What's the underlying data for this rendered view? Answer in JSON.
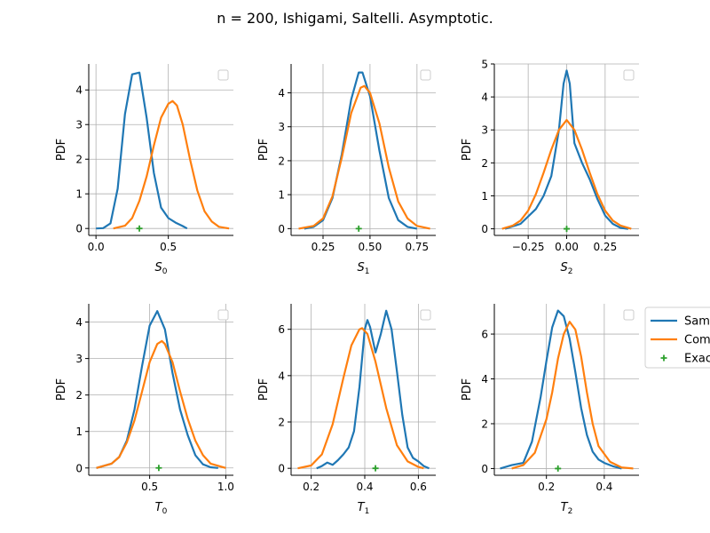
{
  "figure": {
    "title": "n = 200, Ishigami, Saltelli. Asymptotic."
  },
  "legend": {
    "placement": "right of last panel (clipped)",
    "items": [
      {
        "label": "Sam",
        "kind": "line",
        "color": "#1f77b4"
      },
      {
        "label": "Com",
        "kind": "line",
        "color": "#ff7f0e"
      },
      {
        "label": "Exac",
        "kind": "marker",
        "color": "#2ca02c"
      }
    ]
  },
  "colors": {
    "sample": "#1f77b4",
    "computed": "#ff7f0e",
    "exact": "#2ca02c",
    "grid": "#b0b0b0"
  },
  "chart_data": [
    {
      "type": "line",
      "xlabel": "S",
      "xlabel_sub": "0",
      "ylabel": "PDF",
      "grid": true,
      "xlim": [
        -0.05,
        0.95
      ],
      "ylim": [
        -0.2,
        4.75
      ],
      "xticks": [
        0.0,
        0.5
      ],
      "xtick_labels": [
        "0.0",
        "0.5"
      ],
      "yticks": [
        0,
        1,
        2,
        3,
        4
      ],
      "ytick_labels": [
        "0",
        "1",
        "2",
        "3",
        "4"
      ],
      "series": [
        {
          "color": "#1f77b4",
          "x": [
            0.0,
            0.05,
            0.1,
            0.15,
            0.2,
            0.25,
            0.3,
            0.35,
            0.4,
            0.45,
            0.5,
            0.55,
            0.6,
            0.63
          ],
          "y": [
            0.0,
            0.01,
            0.15,
            1.15,
            3.3,
            4.45,
            4.5,
            3.2,
            1.6,
            0.6,
            0.3,
            0.17,
            0.07,
            0.0
          ]
        },
        {
          "color": "#ff7f0e",
          "x": [
            0.12,
            0.2,
            0.25,
            0.3,
            0.35,
            0.4,
            0.45,
            0.5,
            0.53,
            0.56,
            0.6,
            0.65,
            0.7,
            0.75,
            0.8,
            0.85,
            0.92
          ],
          "y": [
            0.0,
            0.08,
            0.3,
            0.8,
            1.5,
            2.4,
            3.2,
            3.6,
            3.68,
            3.55,
            3.0,
            2.0,
            1.1,
            0.5,
            0.2,
            0.05,
            0.0
          ]
        }
      ],
      "exact": {
        "x": 0.3,
        "y": 0
      }
    },
    {
      "type": "line",
      "xlabel": "S",
      "xlabel_sub": "1",
      "ylabel": "PDF",
      "grid": true,
      "xlim": [
        0.08,
        0.85
      ],
      "ylim": [
        -0.2,
        4.85
      ],
      "xticks": [
        0.25,
        0.5,
        0.75
      ],
      "xtick_labels": [
        "0.25",
        "0.50",
        "0.75"
      ],
      "yticks": [
        0,
        1,
        2,
        3,
        4
      ],
      "ytick_labels": [
        "0",
        "1",
        "2",
        "3",
        "4"
      ],
      "series": [
        {
          "color": "#1f77b4",
          "x": [
            0.15,
            0.2,
            0.25,
            0.3,
            0.35,
            0.4,
            0.44,
            0.46,
            0.5,
            0.55,
            0.6,
            0.65,
            0.7,
            0.75
          ],
          "y": [
            0.0,
            0.05,
            0.25,
            0.9,
            2.2,
            3.8,
            4.6,
            4.6,
            3.9,
            2.3,
            0.9,
            0.25,
            0.05,
            0.0
          ]
        },
        {
          "color": "#ff7f0e",
          "x": [
            0.12,
            0.2,
            0.25,
            0.3,
            0.35,
            0.4,
            0.45,
            0.47,
            0.5,
            0.55,
            0.6,
            0.65,
            0.7,
            0.75,
            0.82
          ],
          "y": [
            0.0,
            0.08,
            0.3,
            0.95,
            2.1,
            3.4,
            4.15,
            4.2,
            4.0,
            3.1,
            1.8,
            0.8,
            0.3,
            0.08,
            0.0
          ]
        }
      ],
      "exact": {
        "x": 0.44,
        "y": 0
      }
    },
    {
      "type": "line",
      "xlabel": "S",
      "xlabel_sub": "2",
      "ylabel": "PDF",
      "grid": true,
      "xlim": [
        -0.47,
        0.47
      ],
      "ylim": [
        -0.2,
        5.0
      ],
      "xticks": [
        -0.25,
        0.0,
        0.25
      ],
      "xtick_labels": [
        "−0.25",
        "0.00",
        "0.25"
      ],
      "yticks": [
        0,
        1,
        2,
        3,
        4,
        5
      ],
      "ytick_labels": [
        "0",
        "1",
        "2",
        "3",
        "4",
        "5"
      ],
      "series": [
        {
          "color": "#1f77b4",
          "x": [
            -0.4,
            -0.3,
            -0.2,
            -0.15,
            -0.1,
            -0.05,
            -0.02,
            0.0,
            0.02,
            0.05,
            0.1,
            0.15,
            0.2,
            0.25,
            0.3,
            0.35,
            0.4
          ],
          "y": [
            0.0,
            0.15,
            0.6,
            1.0,
            1.6,
            3.0,
            4.4,
            4.8,
            4.4,
            2.6,
            2.0,
            1.5,
            0.9,
            0.4,
            0.15,
            0.03,
            0.0
          ]
        },
        {
          "color": "#ff7f0e",
          "x": [
            -0.42,
            -0.35,
            -0.3,
            -0.25,
            -0.2,
            -0.15,
            -0.1,
            -0.05,
            0.0,
            0.05,
            0.1,
            0.15,
            0.2,
            0.25,
            0.3,
            0.35,
            0.42
          ],
          "y": [
            0.0,
            0.1,
            0.25,
            0.55,
            1.05,
            1.7,
            2.4,
            3.0,
            3.3,
            3.0,
            2.4,
            1.7,
            1.05,
            0.55,
            0.25,
            0.1,
            0.0
          ]
        }
      ],
      "exact": {
        "x": 0.0,
        "y": 0
      }
    },
    {
      "type": "line",
      "xlabel": "T",
      "xlabel_sub": "0",
      "ylabel": "PDF",
      "grid": true,
      "xlim": [
        0.1,
        1.05
      ],
      "ylim": [
        -0.2,
        4.5
      ],
      "xticks": [
        0.5,
        1.0
      ],
      "xtick_labels": [
        "0.5",
        "1.0"
      ],
      "yticks": [
        0,
        1,
        2,
        3,
        4
      ],
      "ytick_labels": [
        "0",
        "1",
        "2",
        "3",
        "4"
      ],
      "series": [
        {
          "color": "#1f77b4",
          "x": [
            0.15,
            0.25,
            0.3,
            0.35,
            0.4,
            0.45,
            0.5,
            0.55,
            0.6,
            0.65,
            0.7,
            0.75,
            0.8,
            0.85,
            0.9,
            0.95
          ],
          "y": [
            0.0,
            0.12,
            0.3,
            0.75,
            1.6,
            2.8,
            3.9,
            4.3,
            3.8,
            2.6,
            1.6,
            0.9,
            0.35,
            0.1,
            0.02,
            0.0
          ]
        },
        {
          "color": "#ff7f0e",
          "x": [
            0.15,
            0.25,
            0.3,
            0.35,
            0.4,
            0.45,
            0.5,
            0.55,
            0.58,
            0.6,
            0.65,
            0.7,
            0.75,
            0.8,
            0.85,
            0.9,
            1.0
          ],
          "y": [
            0.0,
            0.12,
            0.3,
            0.7,
            1.3,
            2.1,
            2.9,
            3.4,
            3.48,
            3.4,
            2.9,
            2.1,
            1.35,
            0.75,
            0.35,
            0.12,
            0.0
          ]
        }
      ],
      "exact": {
        "x": 0.56,
        "y": 0
      }
    },
    {
      "type": "line",
      "xlabel": "T",
      "xlabel_sub": "1",
      "ylabel": "PDF",
      "grid": true,
      "xlim": [
        0.125,
        0.665
      ],
      "ylim": [
        -0.3,
        7.1
      ],
      "xticks": [
        0.2,
        0.4,
        0.6
      ],
      "xtick_labels": [
        "0.2",
        "0.4",
        "0.6"
      ],
      "yticks": [
        0,
        2,
        4,
        6
      ],
      "ytick_labels": [
        "0",
        "2",
        "4",
        "6"
      ],
      "series": [
        {
          "color": "#1f77b4",
          "x": [
            0.22,
            0.24,
            0.26,
            0.28,
            0.3,
            0.32,
            0.34,
            0.36,
            0.38,
            0.4,
            0.41,
            0.42,
            0.44,
            0.46,
            0.48,
            0.5,
            0.52,
            0.54,
            0.56,
            0.58,
            0.6,
            0.62,
            0.64
          ],
          "y": [
            0.0,
            0.1,
            0.25,
            0.15,
            0.35,
            0.6,
            0.9,
            1.6,
            3.5,
            6.0,
            6.4,
            6.1,
            5.0,
            5.8,
            6.8,
            6.0,
            4.2,
            2.3,
            0.9,
            0.45,
            0.3,
            0.1,
            0.0
          ]
        },
        {
          "color": "#ff7f0e",
          "x": [
            0.15,
            0.2,
            0.24,
            0.28,
            0.32,
            0.35,
            0.38,
            0.39,
            0.41,
            0.44,
            0.48,
            0.52,
            0.56,
            0.6,
            0.62
          ],
          "y": [
            0.0,
            0.12,
            0.6,
            1.9,
            3.9,
            5.3,
            6.0,
            6.05,
            5.8,
            4.6,
            2.6,
            1.0,
            0.3,
            0.06,
            0.0
          ]
        }
      ],
      "exact": {
        "x": 0.44,
        "y": 0
      }
    },
    {
      "type": "line",
      "xlabel": "T",
      "xlabel_sub": "2",
      "ylabel": "PDF",
      "grid": true,
      "xlim": [
        0.02,
        0.52
      ],
      "ylim": [
        -0.3,
        7.35
      ],
      "xticks": [
        0.2,
        0.4
      ],
      "xtick_labels": [
        "0.2",
        "0.4"
      ],
      "yticks": [
        0,
        2,
        4,
        6
      ],
      "ytick_labels": [
        "0",
        "2",
        "4",
        "6"
      ],
      "series": [
        {
          "color": "#1f77b4",
          "x": [
            0.04,
            0.08,
            0.12,
            0.15,
            0.18,
            0.2,
            0.22,
            0.24,
            0.26,
            0.28,
            0.3,
            0.32,
            0.34,
            0.36,
            0.38,
            0.4,
            0.43,
            0.46
          ],
          "y": [
            0.0,
            0.15,
            0.25,
            1.2,
            3.2,
            4.8,
            6.3,
            7.05,
            6.8,
            5.8,
            4.3,
            2.7,
            1.5,
            0.75,
            0.4,
            0.25,
            0.1,
            0.0
          ]
        },
        {
          "color": "#ff7f0e",
          "x": [
            0.08,
            0.12,
            0.16,
            0.2,
            0.22,
            0.24,
            0.26,
            0.28,
            0.3,
            0.32,
            0.34,
            0.36,
            0.38,
            0.42,
            0.46,
            0.5
          ],
          "y": [
            0.0,
            0.15,
            0.7,
            2.2,
            3.4,
            4.9,
            6.0,
            6.55,
            6.2,
            5.0,
            3.4,
            2.0,
            1.0,
            0.3,
            0.05,
            0.0
          ]
        }
      ],
      "exact": {
        "x": 0.24,
        "y": 0
      }
    }
  ]
}
